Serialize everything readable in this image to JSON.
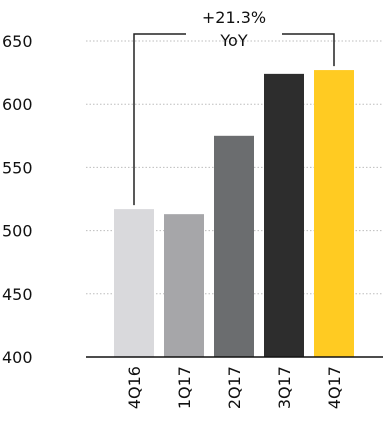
{
  "chart_data": {
    "type": "bar",
    "title": "",
    "xlabel": "",
    "ylabel": "",
    "categories": [
      "4Q16",
      "1Q17",
      "2Q17",
      "3Q17",
      "4Q17"
    ],
    "values": [
      517,
      513,
      575,
      624,
      627
    ],
    "colors": [
      "#d9d9dc",
      "#a6a6a9",
      "#6b6d6f",
      "#2d2d2d",
      "#ffcb22"
    ],
    "ylim": [
      400,
      650
    ],
    "yticks": [
      400,
      450,
      500,
      550,
      600,
      650
    ],
    "grid": true,
    "legend": "none",
    "annotation": {
      "line1": "+21.3%",
      "line2": "YoY",
      "from_category": "4Q16",
      "to_category": "4Q17"
    }
  }
}
